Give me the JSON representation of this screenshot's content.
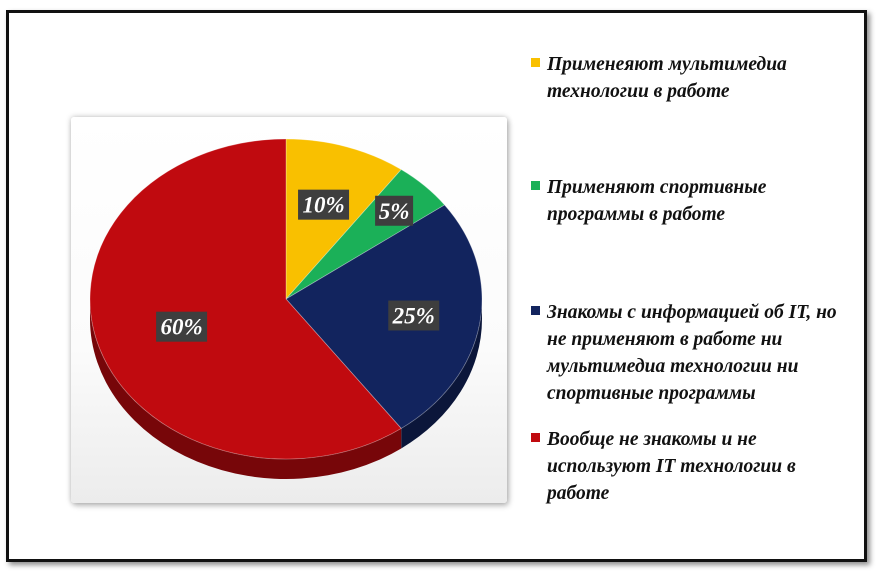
{
  "chart_data": {
    "type": "pie",
    "title": "",
    "slices": [
      {
        "label": "Применеяют мультимедиа технологии в работе",
        "value": 10,
        "data_label": "10%",
        "color": "#f9c000"
      },
      {
        "label": "Применяют спортивные программы в работе",
        "value": 5,
        "data_label": "5%",
        "color": "#1bb058"
      },
      {
        "label": "Знакомы с информацией об IT, но не применяют в работе ни мультимедиа технологии ни спортивные программы",
        "value": 25,
        "data_label": "25%",
        "color": "#12245e"
      },
      {
        "label": "Вообще не знакомы и не используют IT технологии в работе",
        "value": 60,
        "data_label": "60%",
        "color": "#c00a0f"
      }
    ],
    "legend_position": "right",
    "style": "3d"
  }
}
